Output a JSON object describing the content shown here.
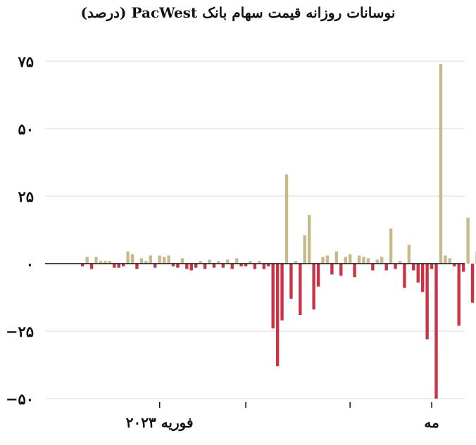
{
  "chart_data": {
    "type": "bar",
    "title": "نوسانات روزانه قیمت سهام بانک PacWest (درصد)",
    "xlabel": "",
    "ylabel": "",
    "ylim": [
      -50,
      75
    ],
    "grid": true,
    "y_ticks": [
      {
        "value": 75,
        "label": "۷۵"
      },
      {
        "value": 50,
        "label": "۵۰"
      },
      {
        "value": 25,
        "label": "۲۵"
      },
      {
        "value": 0,
        "label": "۰"
      },
      {
        "value": -25,
        "label": "−۲۵"
      },
      {
        "value": -50,
        "label": "−۵۰"
      }
    ],
    "x_ticks": [
      {
        "index": 17,
        "label": "فوریه ۲۰۲۳"
      },
      {
        "index": 36,
        "label": ""
      },
      {
        "index": 59,
        "label": ""
      },
      {
        "index": 77,
        "label": "مه"
      }
    ],
    "colors": {
      "positive": "#c8b98a",
      "negative": "#cc3344",
      "grid": "#d9d9d9",
      "axis": "#111111"
    },
    "values": [
      -1,
      2.5,
      -2,
      2.5,
      1,
      1,
      1,
      -1.5,
      -1.5,
      -1,
      4.5,
      3.5,
      -2,
      2,
      1,
      3,
      -1.5,
      3,
      2.5,
      3,
      -1,
      -1.5,
      2,
      -2,
      -2.5,
      -1.5,
      1,
      -2,
      1.5,
      -1.5,
      1,
      -1.5,
      1.5,
      -2,
      2,
      -1,
      -1,
      1,
      -2,
      1,
      -2,
      -1,
      -24,
      -38,
      -21,
      33,
      -13,
      1,
      -19,
      10.5,
      18,
      -17,
      -8.5,
      2.5,
      3,
      -4,
      4.5,
      -4.5,
      2.5,
      3.5,
      -5,
      3,
      2.5,
      2,
      -2.5,
      1.5,
      2.5,
      -2.5,
      13,
      -2,
      1,
      -9,
      7,
      -2.5,
      -7,
      -10.5,
      -28,
      -2,
      -50,
      74,
      3,
      2,
      -1,
      -23,
      -3,
      17,
      -14.5,
      4.5,
      21,
      -2,
      19,
      7,
      -2.5,
      -5
    ]
  }
}
